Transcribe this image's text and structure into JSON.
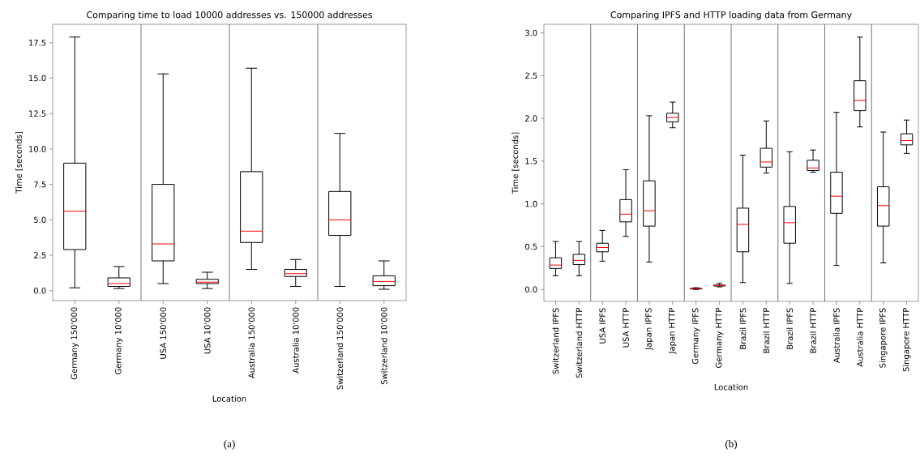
{
  "chart_data": [
    {
      "type": "box",
      "title": "Comparing time to load 10000 addresses vs. 150000 addresses",
      "xlabel": "Location",
      "ylabel": "Time [seconds]",
      "color": "#000000",
      "categories": [
        "Germany 150'000",
        "Germany 10'000",
        "USA 150'000",
        "USA 10'000",
        "Australia 150'000",
        "Australia 10'000",
        "Switzerland 150'000",
        "Switzerland 10'000"
      ],
      "boxes": [
        {
          "low": 0.2,
          "q1": 2.9,
          "median": 5.6,
          "q3": 9.0,
          "high": 17.9
        },
        {
          "low": 0.15,
          "q1": 0.3,
          "median": 0.5,
          "q3": 0.9,
          "high": 1.7
        },
        {
          "low": 0.5,
          "q1": 2.1,
          "median": 3.3,
          "q3": 7.5,
          "high": 15.3
        },
        {
          "low": 0.15,
          "q1": 0.5,
          "median": 0.6,
          "q3": 0.8,
          "high": 1.3
        },
        {
          "low": 1.5,
          "q1": 3.4,
          "median": 4.2,
          "q3": 8.4,
          "high": 15.7
        },
        {
          "low": 0.3,
          "q1": 1.0,
          "median": 1.2,
          "q3": 1.5,
          "high": 2.2
        },
        {
          "low": 0.3,
          "q1": 3.9,
          "median": 5.0,
          "q3": 7.0,
          "high": 11.1
        },
        {
          "low": 0.1,
          "q1": 0.35,
          "median": 0.65,
          "q3": 1.05,
          "high": 2.1
        }
      ],
      "ylim": [
        -0.7,
        18.8
      ],
      "yticks": [
        {
          "value": 0,
          "label": "0.0"
        },
        {
          "value": 2.5,
          "label": "2.5"
        },
        {
          "value": 5,
          "label": "5.0"
        },
        {
          "value": 7.5,
          "label": "7.5"
        },
        {
          "value": 10,
          "label": "10.0"
        },
        {
          "value": 12.5,
          "label": "12.5"
        },
        {
          "value": 15,
          "label": "15.0"
        },
        {
          "value": 17.5,
          "label": "17.5"
        }
      ],
      "annotations": [
        "(a)"
      ]
    },
    {
      "type": "box",
      "title": "Comparing IPFS and HTTP loading data from Germany",
      "xlabel": "Location",
      "ylabel": "Time [seconds]",
      "color": "#000000",
      "categories": [
        "Switzerland IPFS",
        "Switzerland HTTP",
        "USA IPFS",
        "USA HTTP",
        "Japan IPFS",
        "Japan HTTP",
        "Germany IPFS",
        "Germany HTTP",
        "Brazil IPFS",
        "Brazil HTTP",
        "Brazil IPFS",
        "Brazil HTTP",
        "Australia IPFS",
        "Australia HTTP",
        "Singapore IPFS",
        "Singapore HTTP"
      ],
      "boxes": [
        {
          "low": 0.16,
          "q1": 0.245,
          "median": 0.285,
          "q3": 0.37,
          "high": 0.56
        },
        {
          "low": 0.16,
          "q1": 0.29,
          "median": 0.34,
          "q3": 0.41,
          "high": 0.56
        },
        {
          "low": 0.33,
          "q1": 0.44,
          "median": 0.49,
          "q3": 0.54,
          "high": 0.69
        },
        {
          "low": 0.62,
          "q1": 0.79,
          "median": 0.88,
          "q3": 1.05,
          "high": 1.4
        },
        {
          "low": 0.32,
          "q1": 0.74,
          "median": 0.92,
          "q3": 1.27,
          "high": 2.03
        },
        {
          "low": 1.89,
          "q1": 1.96,
          "median": 2.01,
          "q3": 2.06,
          "high": 2.19
        },
        {
          "low": 0.0,
          "q1": 0.005,
          "median": 0.01,
          "q3": 0.012,
          "high": 0.02
        },
        {
          "low": 0.03,
          "q1": 0.04,
          "median": 0.045,
          "q3": 0.05,
          "high": 0.07
        },
        {
          "low": 0.08,
          "q1": 0.44,
          "median": 0.76,
          "q3": 0.95,
          "high": 1.57
        },
        {
          "low": 1.36,
          "q1": 1.43,
          "median": 1.49,
          "q3": 1.65,
          "high": 1.97
        },
        {
          "low": 0.07,
          "q1": 0.54,
          "median": 0.78,
          "q3": 0.97,
          "high": 1.61
        },
        {
          "low": 1.37,
          "q1": 1.39,
          "median": 1.42,
          "q3": 1.51,
          "high": 1.63
        },
        {
          "low": 0.28,
          "q1": 0.89,
          "median": 1.09,
          "q3": 1.37,
          "high": 2.07
        },
        {
          "low": 1.9,
          "q1": 2.09,
          "median": 2.21,
          "q3": 2.44,
          "high": 2.95
        },
        {
          "low": 0.31,
          "q1": 0.74,
          "median": 0.98,
          "q3": 1.2,
          "high": 1.84
        },
        {
          "low": 1.59,
          "q1": 1.69,
          "median": 1.74,
          "q3": 1.82,
          "high": 1.98
        }
      ],
      "ylim": [
        -0.14,
        3.1
      ],
      "yticks": [
        {
          "value": 0,
          "label": "0.0"
        },
        {
          "value": 0.5,
          "label": "0.5"
        },
        {
          "value": 1,
          "label": "1.0"
        },
        {
          "value": 1.5,
          "label": "1.5"
        },
        {
          "value": 2,
          "label": "2.0"
        },
        {
          "value": 2.5,
          "label": "2.5"
        },
        {
          "value": 3,
          "label": "3.0"
        }
      ],
      "annotations": [
        "(b)"
      ]
    }
  ]
}
